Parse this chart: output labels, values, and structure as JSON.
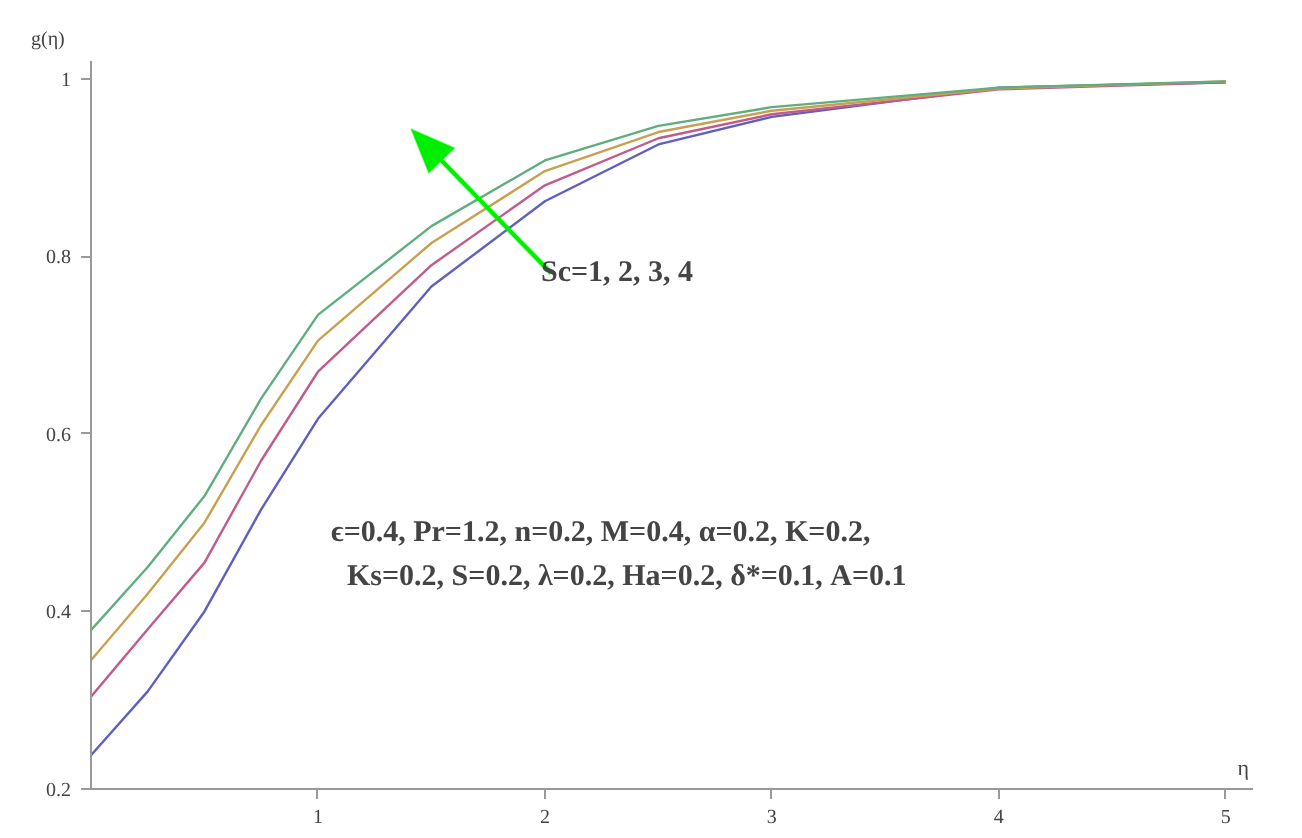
{
  "chart_data": {
    "type": "line",
    "xlabel": "η",
    "ylabel": "g(η)",
    "x": [
      0,
      0.25,
      0.5,
      0.75,
      1,
      1.5,
      2,
      2.5,
      3,
      4,
      5
    ],
    "series": [
      {
        "color": "#5f5fbf",
        "values": [
          0.238,
          0.31,
          0.4,
          0.515,
          0.617,
          0.766,
          0.862,
          0.926,
          0.957,
          0.99,
          0.996
        ]
      },
      {
        "color": "#c05b8c",
        "values": [
          0.304,
          0.38,
          0.455,
          0.57,
          0.67,
          0.79,
          0.88,
          0.933,
          0.96,
          0.988,
          0.996
        ]
      },
      {
        "color": "#c8a050",
        "values": [
          0.345,
          0.42,
          0.5,
          0.61,
          0.705,
          0.815,
          0.896,
          0.94,
          0.964,
          0.989,
          0.997
        ]
      },
      {
        "color": "#5fae7f",
        "values": [
          0.379,
          0.45,
          0.53,
          0.64,
          0.734,
          0.834,
          0.908,
          0.947,
          0.968,
          0.99,
          0.997
        ]
      }
    ],
    "xlim": [
      0,
      5.12
    ],
    "ylim": [
      0.2,
      1.02
    ],
    "xticks": [
      1,
      2,
      3,
      4,
      5
    ],
    "yticks": [
      0.2,
      0.4,
      0.6,
      0.8,
      1.0
    ],
    "grid": false,
    "marker": "none",
    "line_style": "solid",
    "annotations": [
      "Sc=1, 2, 3, 4",
      "ϵ=0.4, Pr=1.2, n=0.2, M=0.4, α=0.2, K=0.2,",
      "Ks=0.2, S=0.2, λ=0.2, Ha=0.2, δ*=0.1, A=0.1"
    ]
  }
}
